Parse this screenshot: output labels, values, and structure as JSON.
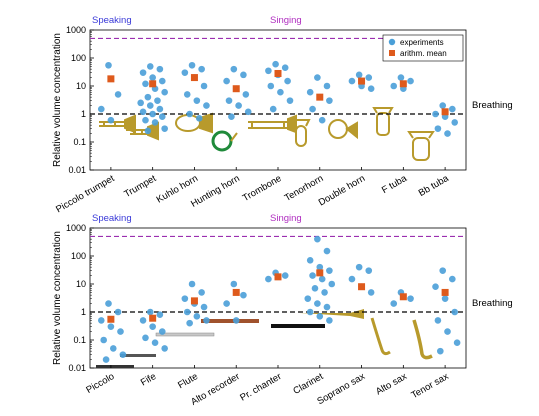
{
  "legend": {
    "experiments": "experiments",
    "mean": "arithm. mean"
  },
  "colors": {
    "experiment": "#4a9fd8",
    "mean": "#de5a1c",
    "reference_line": "#9b2fb0",
    "breathing_line": "#000000",
    "instrument": "#b89a2c"
  },
  "chart_data": [
    {
      "type": "scatter",
      "title": "",
      "xlabel": "",
      "ylabel": "Relative volume concentration",
      "yscale": "log",
      "ylim": [
        0.01,
        1000
      ],
      "yticks": [
        "0.01",
        "0.1",
        "1",
        "10",
        "100",
        "1000"
      ],
      "grid": false,
      "legend_position": "top-right",
      "reference_lines": [
        {
          "y": 500,
          "style": "dashed",
          "color": "purple",
          "labels": [
            "Speaking",
            "Singing"
          ]
        },
        {
          "y": 1,
          "style": "dashed",
          "color": "black",
          "labels": [
            "Breathing"
          ]
        }
      ],
      "categories": [
        "Piccolo trumpet",
        "Trumpet",
        "Kuhlo horn",
        "Hunting horn",
        "Trombone",
        "Tenorhorn",
        "Double horn",
        "F tuba",
        "Bb tuba"
      ],
      "series": [
        {
          "name": "experiments",
          "points": [
            [
              0,
              55
            ],
            [
              0,
              5
            ],
            [
              0,
              1.5
            ],
            [
              0,
              0.6
            ],
            [
              1,
              50
            ],
            [
              1,
              40
            ],
            [
              1,
              30
            ],
            [
              1,
              20
            ],
            [
              1,
              15
            ],
            [
              1,
              12
            ],
            [
              1,
              8
            ],
            [
              1,
              6
            ],
            [
              1,
              4
            ],
            [
              1,
              3
            ],
            [
              1,
              2.5
            ],
            [
              1,
              2
            ],
            [
              1,
              1.5
            ],
            [
              1,
              1.2
            ],
            [
              1,
              1
            ],
            [
              1,
              0.8
            ],
            [
              1,
              0.6
            ],
            [
              1,
              0.5
            ],
            [
              1,
              0.3
            ],
            [
              1,
              0.25
            ],
            [
              2,
              55
            ],
            [
              2,
              40
            ],
            [
              2,
              30
            ],
            [
              2,
              20
            ],
            [
              2,
              10
            ],
            [
              2,
              5
            ],
            [
              2,
              3
            ],
            [
              2,
              2
            ],
            [
              2,
              1
            ],
            [
              2,
              0.7
            ],
            [
              3,
              40
            ],
            [
              3,
              25
            ],
            [
              3,
              15
            ],
            [
              3,
              8
            ],
            [
              3,
              5
            ],
            [
              3,
              3
            ],
            [
              3,
              2
            ],
            [
              3,
              1.2
            ],
            [
              3,
              0.8
            ],
            [
              4,
              60
            ],
            [
              4,
              45
            ],
            [
              4,
              35
            ],
            [
              4,
              25
            ],
            [
              4,
              15
            ],
            [
              4,
              10
            ],
            [
              4,
              6
            ],
            [
              4,
              3
            ],
            [
              4,
              1.5
            ],
            [
              5,
              20
            ],
            [
              5,
              10
            ],
            [
              5,
              6
            ],
            [
              5,
              4
            ],
            [
              5,
              3
            ],
            [
              5,
              1.5
            ],
            [
              5,
              0.6
            ],
            [
              6,
              25
            ],
            [
              6,
              20
            ],
            [
              6,
              15
            ],
            [
              6,
              10
            ],
            [
              6,
              8
            ],
            [
              7,
              20
            ],
            [
              7,
              15
            ],
            [
              7,
              10
            ],
            [
              7,
              8
            ],
            [
              8,
              2
            ],
            [
              8,
              1.5
            ],
            [
              8,
              1
            ],
            [
              8,
              0.8
            ],
            [
              8,
              0.5
            ],
            [
              8,
              0.3
            ],
            [
              8,
              0.2
            ]
          ]
        },
        {
          "name": "arithm. mean",
          "values": [
            18,
            12,
            20,
            8,
            28,
            4,
            15,
            12,
            1.2
          ]
        }
      ]
    },
    {
      "type": "scatter",
      "title": "",
      "xlabel": "",
      "ylabel": "Relative volume concentration",
      "yscale": "log",
      "ylim": [
        0.01,
        1000
      ],
      "yticks": [
        "0.01",
        "0.1",
        "1",
        "10",
        "100",
        "1000"
      ],
      "grid": false,
      "reference_lines": [
        {
          "y": 500,
          "style": "dashed",
          "color": "purple",
          "labels": [
            "Speaking",
            "Singing"
          ]
        },
        {
          "y": 1,
          "style": "dashed",
          "color": "black",
          "labels": [
            "Breathing"
          ]
        }
      ],
      "categories": [
        "Piccolo",
        "Fife",
        "Flute",
        "Alto recorder",
        "Pr. chanter",
        "Clarinet",
        "Soprano sax",
        "Alto sax",
        "Tenor sax"
      ],
      "series": [
        {
          "name": "experiments",
          "points": [
            [
              0,
              2
            ],
            [
              0,
              1
            ],
            [
              0,
              0.5
            ],
            [
              0,
              0.3
            ],
            [
              0,
              0.2
            ],
            [
              0,
              0.1
            ],
            [
              0,
              0.05
            ],
            [
              0,
              0.03
            ],
            [
              0,
              0.02
            ],
            [
              1,
              1
            ],
            [
              1,
              0.8
            ],
            [
              1,
              0.5
            ],
            [
              1,
              0.3
            ],
            [
              1,
              0.2
            ],
            [
              1,
              0.12
            ],
            [
              1,
              0.08
            ],
            [
              1,
              0.05
            ],
            [
              2,
              10
            ],
            [
              2,
              5
            ],
            [
              2,
              3
            ],
            [
              2,
              2
            ],
            [
              2,
              1.5
            ],
            [
              2,
              1
            ],
            [
              2,
              0.7
            ],
            [
              2,
              0.5
            ],
            [
              2,
              0.4
            ],
            [
              3,
              10
            ],
            [
              3,
              4
            ],
            [
              3,
              2
            ],
            [
              3,
              0.5
            ],
            [
              4,
              25
            ],
            [
              4,
              20
            ],
            [
              4,
              15
            ],
            [
              5,
              400
            ],
            [
              5,
              150
            ],
            [
              5,
              70
            ],
            [
              5,
              40
            ],
            [
              5,
              30
            ],
            [
              5,
              20
            ],
            [
              5,
              15
            ],
            [
              5,
              10
            ],
            [
              5,
              7
            ],
            [
              5,
              5
            ],
            [
              5,
              3
            ],
            [
              5,
              2
            ],
            [
              5,
              1.5
            ],
            [
              5,
              1
            ],
            [
              5,
              0.7
            ],
            [
              5,
              0.5
            ],
            [
              6,
              40
            ],
            [
              6,
              30
            ],
            [
              6,
              15
            ],
            [
              6,
              8
            ],
            [
              6,
              5
            ],
            [
              7,
              5
            ],
            [
              7,
              3
            ],
            [
              7,
              2
            ],
            [
              8,
              30
            ],
            [
              8,
              15
            ],
            [
              8,
              8
            ],
            [
              8,
              3
            ],
            [
              8,
              1
            ],
            [
              8,
              0.5
            ],
            [
              8,
              0.2
            ],
            [
              8,
              0.08
            ],
            [
              8,
              0.04
            ]
          ]
        },
        {
          "name": "arithm. mean",
          "values": [
            0.55,
            0.6,
            2.5,
            5,
            18,
            25,
            8,
            3.5,
            5
          ]
        }
      ]
    }
  ]
}
